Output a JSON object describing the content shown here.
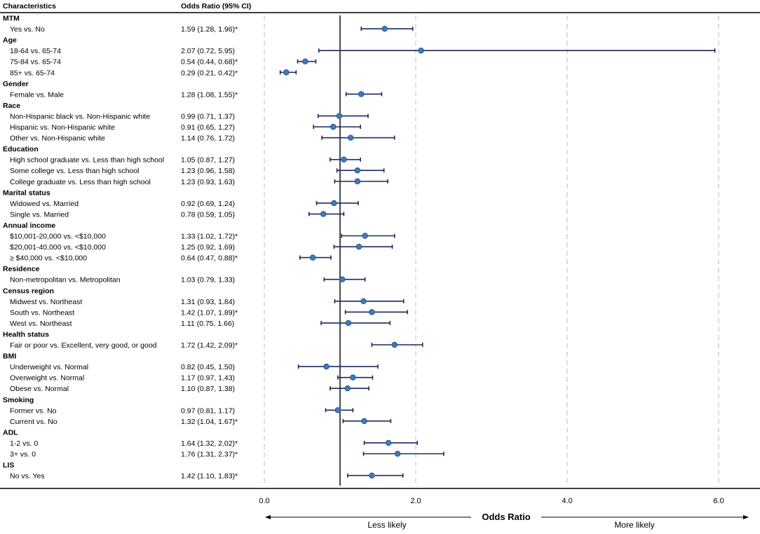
{
  "chart_data": {
    "type": "forest",
    "columns": {
      "characteristics": "Characteristics",
      "odds_ratio": "Odds Ratio (95% CI)"
    },
    "x_axis": {
      "label": "Odds Ratio",
      "ticks": [
        0,
        2,
        4,
        6
      ],
      "tick_labels": [
        "0.0",
        "2.0",
        "4.0",
        "6.0"
      ],
      "range": [
        0,
        6
      ],
      "reference_line": 1,
      "left_annotation": "Less likely",
      "right_annotation": "More likely"
    },
    "colors": {
      "point": "#3e7bbf",
      "point_edge": "#23466e",
      "ci": "#1a2a5e",
      "grid": "#c8c8c8",
      "ref": "#000000"
    },
    "groups": [
      {
        "name": "MTM",
        "rows": [
          {
            "label": "Yes vs. No",
            "text": "1.59 (1.28, 1.96)*",
            "or": 1.59,
            "lo": 1.28,
            "hi": 1.96
          }
        ]
      },
      {
        "name": "Age",
        "rows": [
          {
            "label": "18-64 vs. 65-74",
            "text": "2.07 (0.72, 5.95)",
            "or": 2.07,
            "lo": 0.72,
            "hi": 5.95
          },
          {
            "label": "75-84 vs. 65-74",
            "text": "0.54 (0.44, 0.68)*",
            "or": 0.54,
            "lo": 0.44,
            "hi": 0.68
          },
          {
            "label": "85+ vs. 65-74",
            "text": "0.29 (0.21, 0.42)*",
            "or": 0.29,
            "lo": 0.21,
            "hi": 0.42
          }
        ]
      },
      {
        "name": "Gender",
        "rows": [
          {
            "label": "Female vs. Male",
            "text": "1.28 (1.08, 1.55)*",
            "or": 1.28,
            "lo": 1.08,
            "hi": 1.55
          }
        ]
      },
      {
        "name": "Race",
        "rows": [
          {
            "label": "Non-Hispanic black vs. Non-Hispanic white",
            "text": "0.99 (0.71, 1.37)",
            "or": 0.99,
            "lo": 0.71,
            "hi": 1.37
          },
          {
            "label": "Hispanic vs. Non-Hispanic white",
            "text": "0.91 (0.65, 1.27)",
            "or": 0.91,
            "lo": 0.65,
            "hi": 1.27
          },
          {
            "label": "Other vs. Non-Hispanic white",
            "text": "1.14 (0.76, 1.72)",
            "or": 1.14,
            "lo": 0.76,
            "hi": 1.72
          }
        ]
      },
      {
        "name": "Education",
        "rows": [
          {
            "label": "High school graduate vs. Less than high school",
            "text": "1.05 (0.87, 1.27)",
            "or": 1.05,
            "lo": 0.87,
            "hi": 1.27
          },
          {
            "label": "Some college vs. Less than high school",
            "text": "1.23 (0.96, 1.58)",
            "or": 1.23,
            "lo": 0.96,
            "hi": 1.58
          },
          {
            "label": "College graduate vs. Less than high school",
            "text": "1.23 (0.93, 1.63)",
            "or": 1.23,
            "lo": 0.93,
            "hi": 1.63
          }
        ]
      },
      {
        "name": "Marital status",
        "rows": [
          {
            "label": "Widowed vs. Married",
            "text": "0.92 (0.69, 1.24)",
            "or": 0.92,
            "lo": 0.69,
            "hi": 1.24
          },
          {
            "label": "Single vs. Married",
            "text": "0.78 (0.59, 1.05)",
            "or": 0.78,
            "lo": 0.59,
            "hi": 1.05
          }
        ]
      },
      {
        "name": "Annual income",
        "rows": [
          {
            "label": "$10,001-20,000 vs. <$10,000",
            "text": "1.33 (1.02, 1.72)*",
            "or": 1.33,
            "lo": 1.02,
            "hi": 1.72
          },
          {
            "label": "$20,001-40,000 vs. <$10,000",
            "text": "1.25 (0.92, 1.69)",
            "or": 1.25,
            "lo": 0.92,
            "hi": 1.69
          },
          {
            "label": "≥ $40,000 vs. <$10,000",
            "text": "0.64 (0.47, 0.88)*",
            "or": 0.64,
            "lo": 0.47,
            "hi": 0.88
          }
        ]
      },
      {
        "name": "Residence",
        "rows": [
          {
            "label": "Non-metropolitan vs. Metropolitan",
            "text": "1.03 (0.79, 1.33)",
            "or": 1.03,
            "lo": 0.79,
            "hi": 1.33
          }
        ]
      },
      {
        "name": "Census region",
        "rows": [
          {
            "label": "Midwest vs. Northeast",
            "text": "1.31 (0.93, 1.84)",
            "or": 1.31,
            "lo": 0.93,
            "hi": 1.84
          },
          {
            "label": "South vs. Northeast",
            "text": "1.42 (1.07, 1.89)*",
            "or": 1.42,
            "lo": 1.07,
            "hi": 1.89
          },
          {
            "label": "West vs. Northeast",
            "text": "1.11 (0.75, 1.66)",
            "or": 1.11,
            "lo": 0.75,
            "hi": 1.66
          }
        ]
      },
      {
        "name": "Health status",
        "rows": [
          {
            "label": "Fair or poor vs. Excellent, very good, or good",
            "text": "1.72 (1.42, 2.09)*",
            "or": 1.72,
            "lo": 1.42,
            "hi": 2.09
          }
        ]
      },
      {
        "name": "BMI",
        "rows": [
          {
            "label": "Underweight vs. Normal",
            "text": "0.82 (0.45, 1.50)",
            "or": 0.82,
            "lo": 0.45,
            "hi": 1.5
          },
          {
            "label": "Overweight vs. Normal",
            "text": "1.17 (0.97, 1.43)",
            "or": 1.17,
            "lo": 0.97,
            "hi": 1.43
          },
          {
            "label": "Obese vs. Normal",
            "text": "1.10 (0.87, 1.38)",
            "or": 1.1,
            "lo": 0.87,
            "hi": 1.38
          }
        ]
      },
      {
        "name": "Smoking",
        "rows": [
          {
            "label": "Former vs. No",
            "text": "0.97 (0.81, 1.17)",
            "or": 0.97,
            "lo": 0.81,
            "hi": 1.17
          },
          {
            "label": "Current vs. No",
            "text": "1.32 (1.04, 1.67)*",
            "or": 1.32,
            "lo": 1.04,
            "hi": 1.67
          }
        ]
      },
      {
        "name": "ADL",
        "rows": [
          {
            "label": "1-2 vs. 0",
            "text": "1.64 (1.32, 2.02)*",
            "or": 1.64,
            "lo": 1.32,
            "hi": 2.02
          },
          {
            "label": "3+ vs. 0",
            "text": "1.76 (1.31, 2.37)*",
            "or": 1.76,
            "lo": 1.31,
            "hi": 2.37
          }
        ]
      },
      {
        "name": "LIS",
        "rows": [
          {
            "label": "No vs. Yes",
            "text": "1.42 (1.10, 1.83)*",
            "or": 1.42,
            "lo": 1.1,
            "hi": 1.83
          }
        ]
      }
    ]
  }
}
